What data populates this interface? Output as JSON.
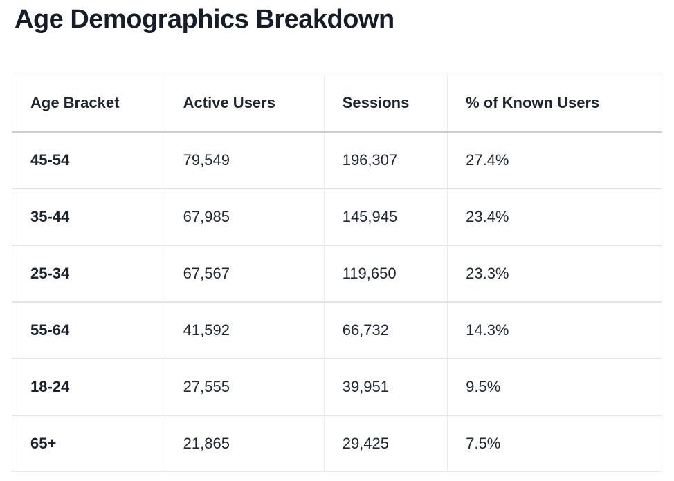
{
  "page": {
    "title": "Age Demographics Breakdown"
  },
  "table": {
    "columns": [
      "Age Bracket",
      "Active Users",
      "Sessions",
      "% of Known Users"
    ],
    "rows": [
      {
        "bracket": "45-54",
        "active_users": "79,549",
        "sessions": "196,307",
        "pct_known_users": "27.4%"
      },
      {
        "bracket": "35-44",
        "active_users": "67,985",
        "sessions": "145,945",
        "pct_known_users": "23.4%"
      },
      {
        "bracket": "25-34",
        "active_users": "67,567",
        "sessions": "119,650",
        "pct_known_users": "23.3%"
      },
      {
        "bracket": "55-64",
        "active_users": "41,592",
        "sessions": "66,732",
        "pct_known_users": "14.3%"
      },
      {
        "bracket": "18-24",
        "active_users": "27,555",
        "sessions": "39,951",
        "pct_known_users": "9.5%"
      },
      {
        "bracket": "65+",
        "active_users": "21,865",
        "sessions": "29,425",
        "pct_known_users": "7.5%"
      }
    ]
  },
  "colors": {
    "title_text": "#161d2a",
    "cell_text": "#202836",
    "header_divider": "#c9ced6",
    "row_divider": "#e2e4e8",
    "table_border": "#e8e9ec",
    "background": "#ffffff"
  },
  "chart_data": {
    "type": "table",
    "title": "Age Demographics Breakdown",
    "columns": [
      "Age Bracket",
      "Active Users",
      "Sessions",
      "% of Known Users"
    ],
    "rows": [
      [
        "45-54",
        79549,
        196307,
        "27.4%"
      ],
      [
        "35-44",
        67985,
        145945,
        "23.4%"
      ],
      [
        "25-34",
        67567,
        119650,
        "23.3%"
      ],
      [
        "55-64",
        41592,
        66732,
        "14.3%"
      ],
      [
        "18-24",
        27555,
        39951,
        "9.5%"
      ],
      [
        "65+",
        21865,
        29425,
        "7.5%"
      ]
    ]
  }
}
